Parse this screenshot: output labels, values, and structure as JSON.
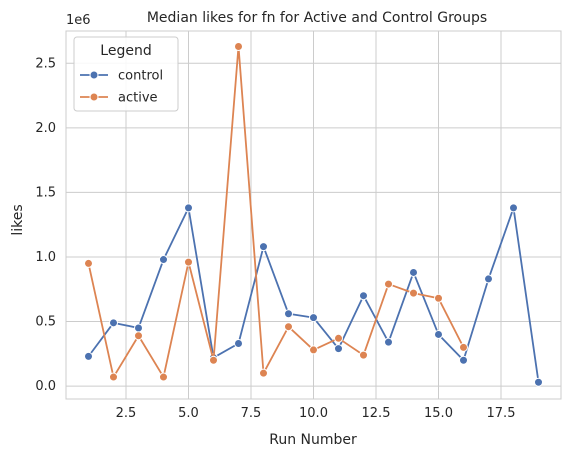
{
  "chart_data": {
    "type": "line",
    "title": "Median likes for fn for Active and Control Groups",
    "xlabel": "Run Number",
    "ylabel": "likes",
    "y_offset_label": "1e6",
    "xlim": [
      0.1,
      19.9
    ],
    "ylim": [
      -0.1,
      2.75
    ],
    "x_ticks": [
      2.5,
      5.0,
      7.5,
      10.0,
      12.5,
      15.0,
      17.5
    ],
    "x_tick_labels": [
      "2.5",
      "5.0",
      "7.5",
      "10.0",
      "12.5",
      "15.0",
      "17.5"
    ],
    "y_ticks": [
      0.0,
      0.5,
      1.0,
      1.5,
      2.0,
      2.5
    ],
    "y_tick_labels": [
      "0.0",
      "0.5",
      "1.0",
      "1.5",
      "2.0",
      "2.5"
    ],
    "grid": true,
    "legend": {
      "title": "Legend",
      "placement": "top-left"
    },
    "series": [
      {
        "name": "control",
        "color": "#4c72b0",
        "x": [
          1,
          2,
          3,
          4,
          5,
          6,
          7,
          8,
          9,
          10,
          11,
          12,
          13,
          14,
          15,
          16,
          17,
          18,
          19
        ],
        "y": [
          0.23,
          0.49,
          0.45,
          0.98,
          1.38,
          0.22,
          0.33,
          1.08,
          0.56,
          0.53,
          0.29,
          0.7,
          0.34,
          0.88,
          0.4,
          0.2,
          0.83,
          1.38,
          0.03
        ]
      },
      {
        "name": "active",
        "color": "#dd8452",
        "x": [
          1,
          2,
          3,
          4,
          5,
          6,
          7,
          8,
          9,
          10,
          11,
          12,
          13,
          14,
          15,
          16
        ],
        "y": [
          0.95,
          0.07,
          0.39,
          0.07,
          0.96,
          0.2,
          2.63,
          0.1,
          0.46,
          0.28,
          0.37,
          0.24,
          0.79,
          0.72,
          0.68,
          0.3
        ]
      }
    ]
  }
}
